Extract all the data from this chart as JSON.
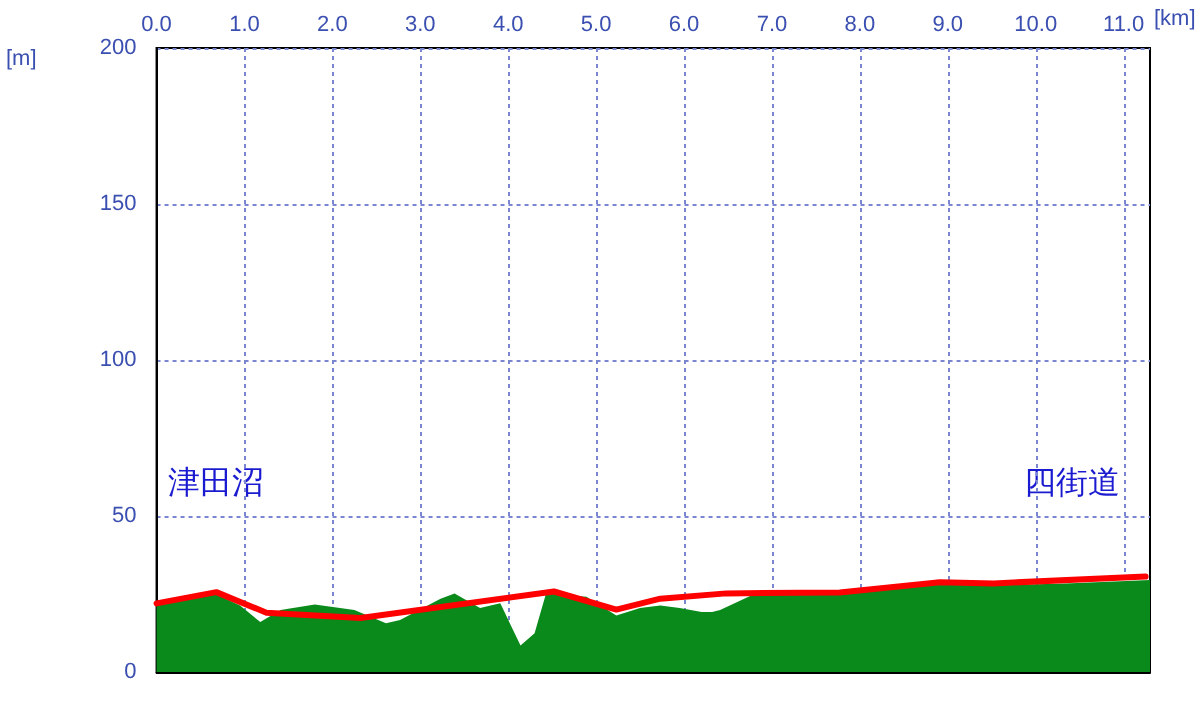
{
  "chart_data": {
    "type": "line",
    "xlabel": "[km]",
    "ylabel": "[m]",
    "xlim": [
      0,
      11.3
    ],
    "ylim": [
      0,
      200
    ],
    "xticks": [
      {
        "value": 0,
        "label": "0.0"
      },
      {
        "value": 1,
        "label": "1.0"
      },
      {
        "value": 2,
        "label": "2.0"
      },
      {
        "value": 3,
        "label": "3.0"
      },
      {
        "value": 4,
        "label": "4.0"
      },
      {
        "value": 5,
        "label": "5.0"
      },
      {
        "value": 6,
        "label": "6.0"
      },
      {
        "value": 7,
        "label": "7.0"
      },
      {
        "value": 8,
        "label": "8.0"
      },
      {
        "value": 9,
        "label": "9.0"
      },
      {
        "value": 10,
        "label": "10.0"
      },
      {
        "value": 11,
        "label": "11.0"
      }
    ],
    "yticks": [
      0,
      50,
      100,
      150,
      200
    ],
    "grid": true,
    "marker": "none",
    "annotations": [
      "津田沼",
      "四街道"
    ],
    "series": [
      {
        "type": "area",
        "color": "#0a8a1a",
        "x": [
          0,
          0.66,
          0.95,
          1.18,
          1.41,
          1.8,
          2.25,
          2.61,
          2.77,
          3.23,
          3.39,
          3.68,
          3.91,
          4.14,
          4.3,
          4.43,
          4.89,
          5.23,
          5.5,
          5.73,
          5.95,
          6.2,
          6.32,
          6.41,
          6.77,
          7.77,
          8.91,
          9.52,
          10.34,
          11.3
        ],
        "values": [
          21.3,
          25.2,
          21.3,
          16,
          19.9,
          21.6,
          19.9,
          15.6,
          16.7,
          23.5,
          25.2,
          20.5,
          22,
          8.5,
          12.4,
          25.2,
          24.1,
          18.1,
          20.5,
          21.3,
          20.5,
          19.2,
          19.2,
          19.9,
          24.6,
          25.6,
          28.4,
          27.8,
          28.4,
          29.5
        ]
      },
      {
        "color": "#ff0000",
        "x": [
          0,
          0.68,
          1.25,
          2.32,
          4.52,
          5.23,
          5.73,
          6.48,
          7.77,
          8.91,
          9.52,
          11.25
        ],
        "values": [
          22,
          25.6,
          19,
          17.3,
          25.8,
          20,
          23.5,
          25.2,
          25.5,
          28.8,
          28.4,
          30.6
        ]
      }
    ]
  }
}
